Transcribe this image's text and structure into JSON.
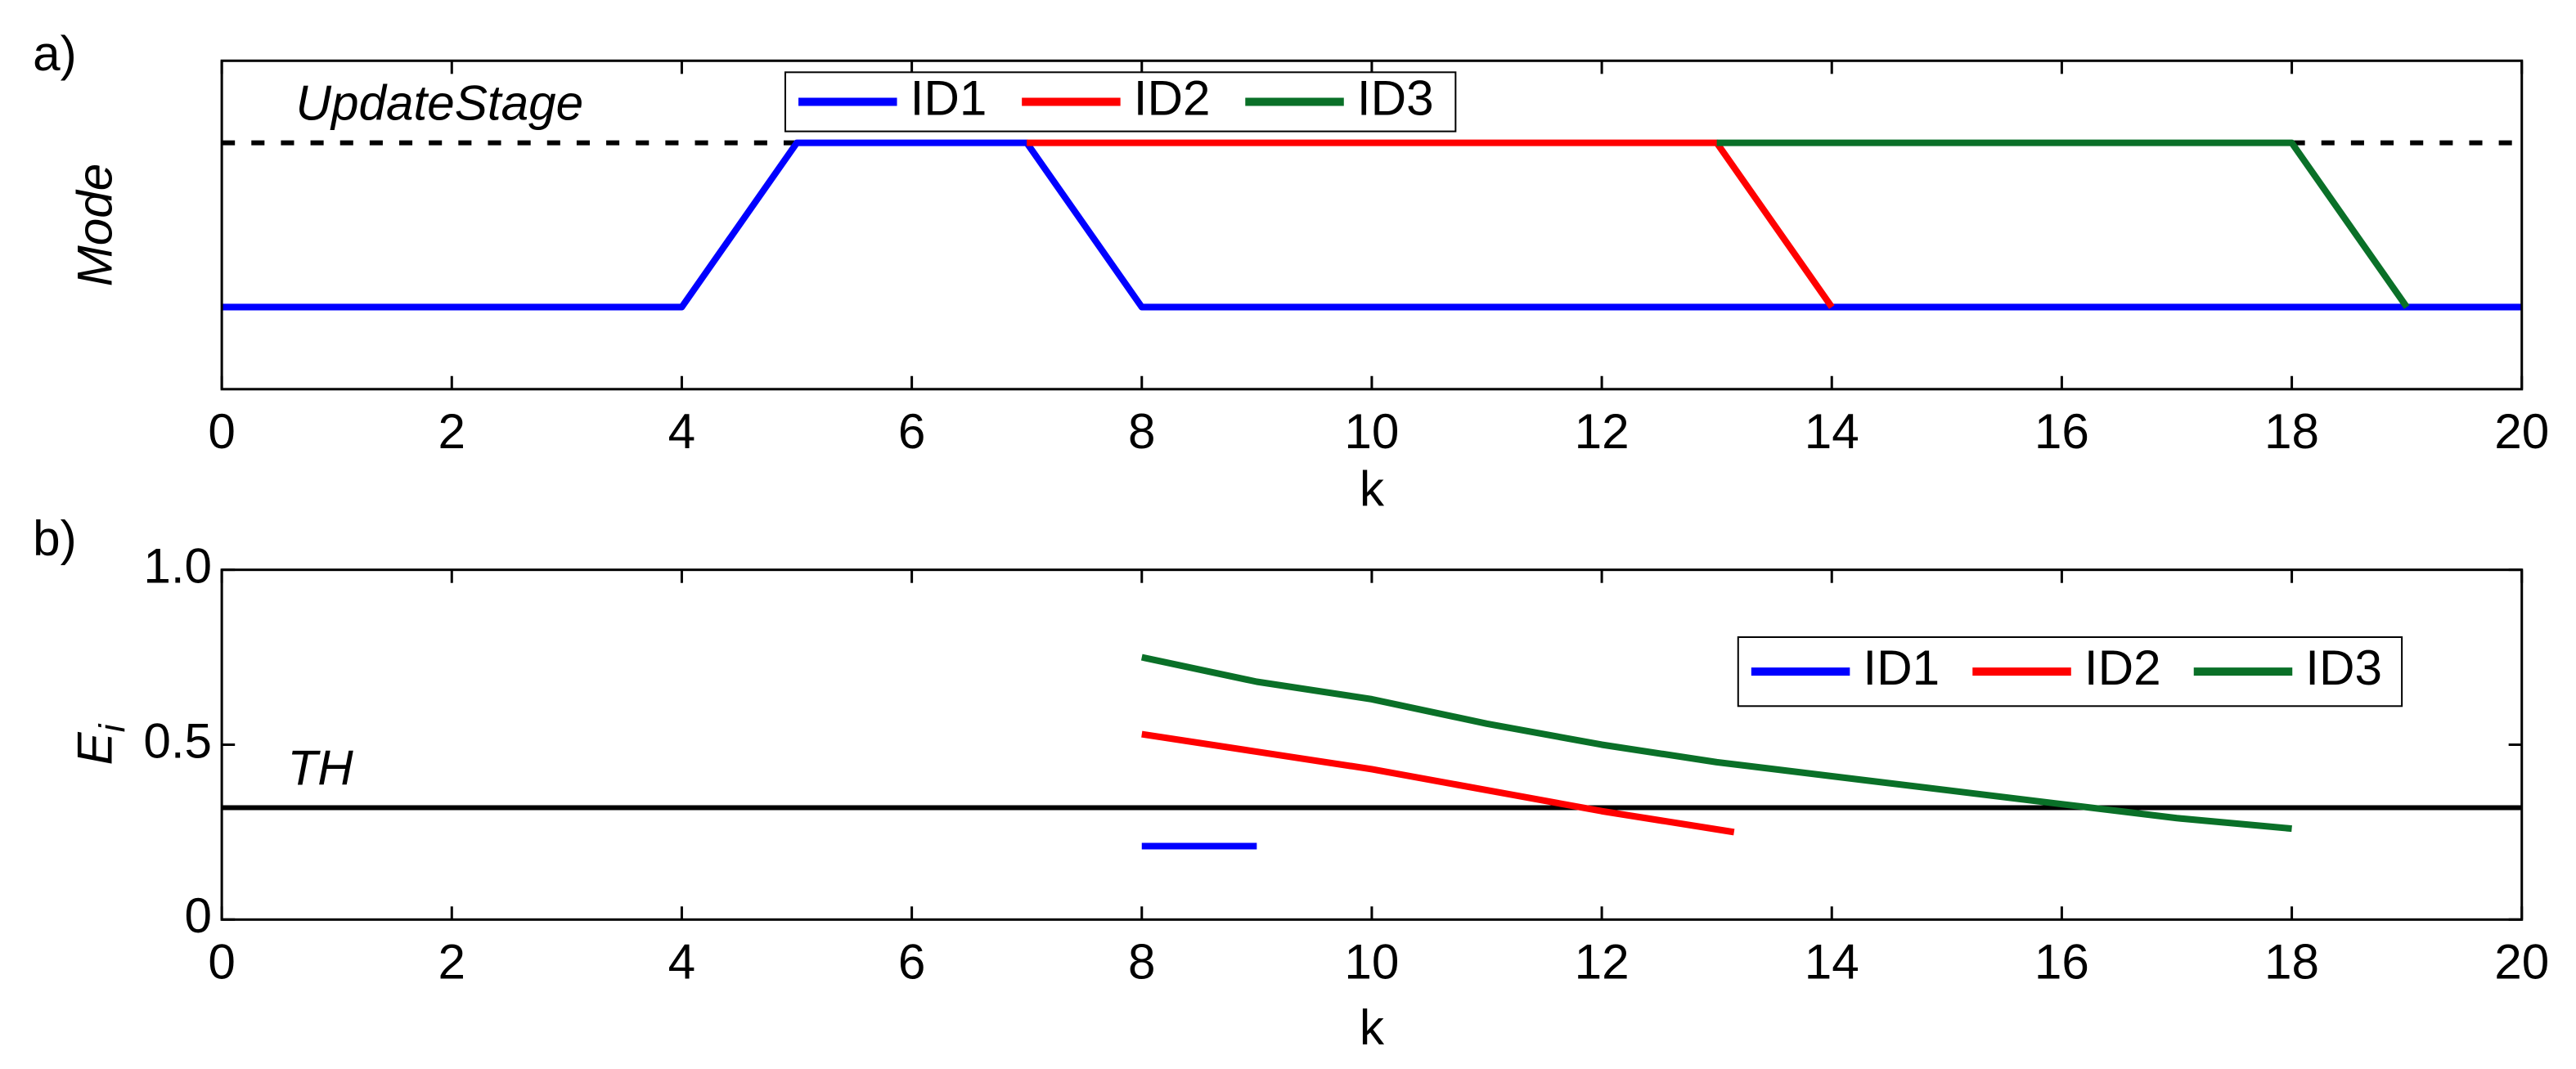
{
  "chart_data": [
    {
      "type": "line",
      "panel_label": "a)",
      "xlabel": "k",
      "ylabel": "Mode",
      "xlim": [
        0,
        20
      ],
      "xticks": [
        0,
        2,
        4,
        6,
        8,
        10,
        12,
        14,
        16,
        18,
        20
      ],
      "ylim": [
        -0.5,
        1.5
      ],
      "grid": false,
      "legend_loc": "upper center",
      "reference": {
        "label": "UpdateStage",
        "value": 1,
        "style": "dashed",
        "color": "#000000"
      },
      "series": [
        {
          "name": "ID1",
          "color": "#0000ff",
          "x": [
            0,
            4,
            5,
            7,
            8,
            20
          ],
          "values": [
            0,
            0,
            1,
            1,
            0,
            0
          ]
        },
        {
          "name": "ID2",
          "color": "#ff0000",
          "x": [
            7,
            13,
            14
          ],
          "values": [
            1,
            1,
            0
          ]
        },
        {
          "name": "ID3",
          "color": "#0a7028",
          "x": [
            13,
            18,
            19
          ],
          "values": [
            1,
            1,
            0
          ]
        }
      ]
    },
    {
      "type": "line",
      "panel_label": "b)",
      "xlabel": "k",
      "ylabel": "E",
      "ylabel_sub": "i",
      "xlim": [
        0,
        20
      ],
      "xticks": [
        0,
        2,
        4,
        6,
        8,
        10,
        12,
        14,
        16,
        18,
        20
      ],
      "ylim": [
        0,
        1
      ],
      "yticks": [
        0,
        0.5,
        {
          "value": 1,
          "label": "1.0"
        }
      ],
      "grid": false,
      "legend_loc": "upper right",
      "reference": {
        "label": "TH",
        "value": 0.32,
        "style": "solid",
        "color": "#000000"
      },
      "series": [
        {
          "name": "ID1",
          "color": "#0000ff",
          "x": [
            8,
            9
          ],
          "values": [
            0.21,
            0.21
          ]
        },
        {
          "name": "ID2",
          "color": "#ff0000",
          "x": [
            8,
            9,
            10,
            11,
            12,
            13.15
          ],
          "values": [
            0.53,
            0.48,
            0.43,
            0.37,
            0.31,
            0.25
          ]
        },
        {
          "name": "ID3",
          "color": "#0a7028",
          "x": [
            8,
            9,
            10,
            11,
            12,
            13,
            14,
            15,
            16,
            17,
            18
          ],
          "values": [
            0.75,
            0.68,
            0.63,
            0.56,
            0.5,
            0.45,
            0.41,
            0.37,
            0.33,
            0.29,
            0.26
          ]
        }
      ]
    }
  ]
}
